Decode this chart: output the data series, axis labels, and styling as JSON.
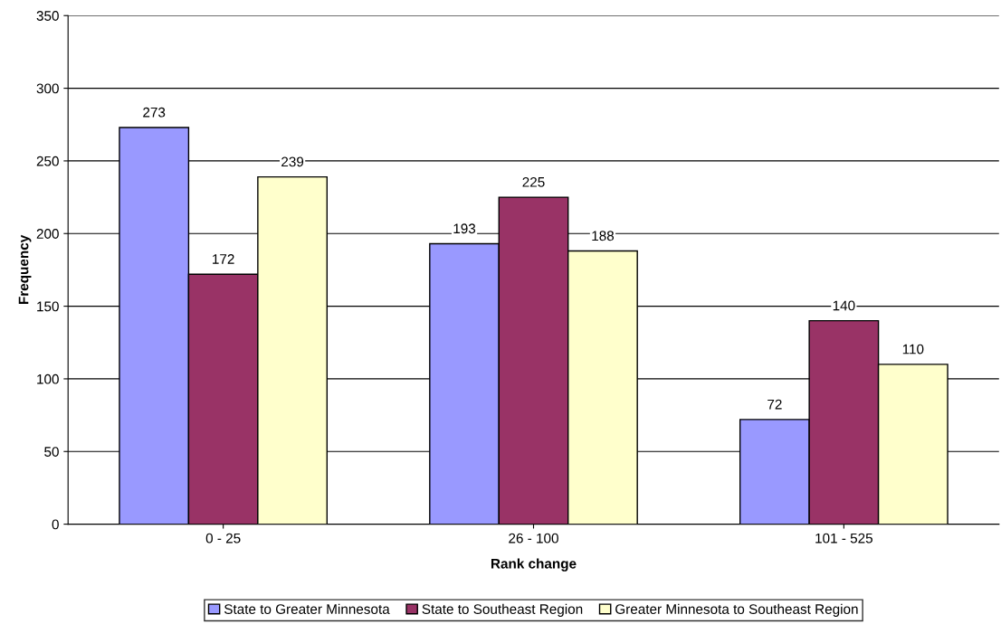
{
  "chart_data": {
    "type": "bar",
    "xlabel": "Rank change",
    "ylabel": "Frequency",
    "categories": [
      "0 - 25",
      "26 - 100",
      "101 - 525"
    ],
    "series": [
      {
        "name": "State to Greater Minnesota",
        "color": "#9999ff",
        "values": [
          273,
          193,
          72
        ]
      },
      {
        "name": "State to Southeast Region",
        "color": "#993366",
        "values": [
          172,
          225,
          140
        ]
      },
      {
        "name": "Greater Minnesota to Southeast Region",
        "color": "#ffffcc",
        "values": [
          239,
          188,
          110
        ]
      }
    ],
    "ylim": [
      0,
      350
    ],
    "yticks": [
      0,
      50,
      100,
      150,
      200,
      250,
      300,
      350
    ],
    "grid": "y",
    "legend": "bottom",
    "data_labels": true
  }
}
